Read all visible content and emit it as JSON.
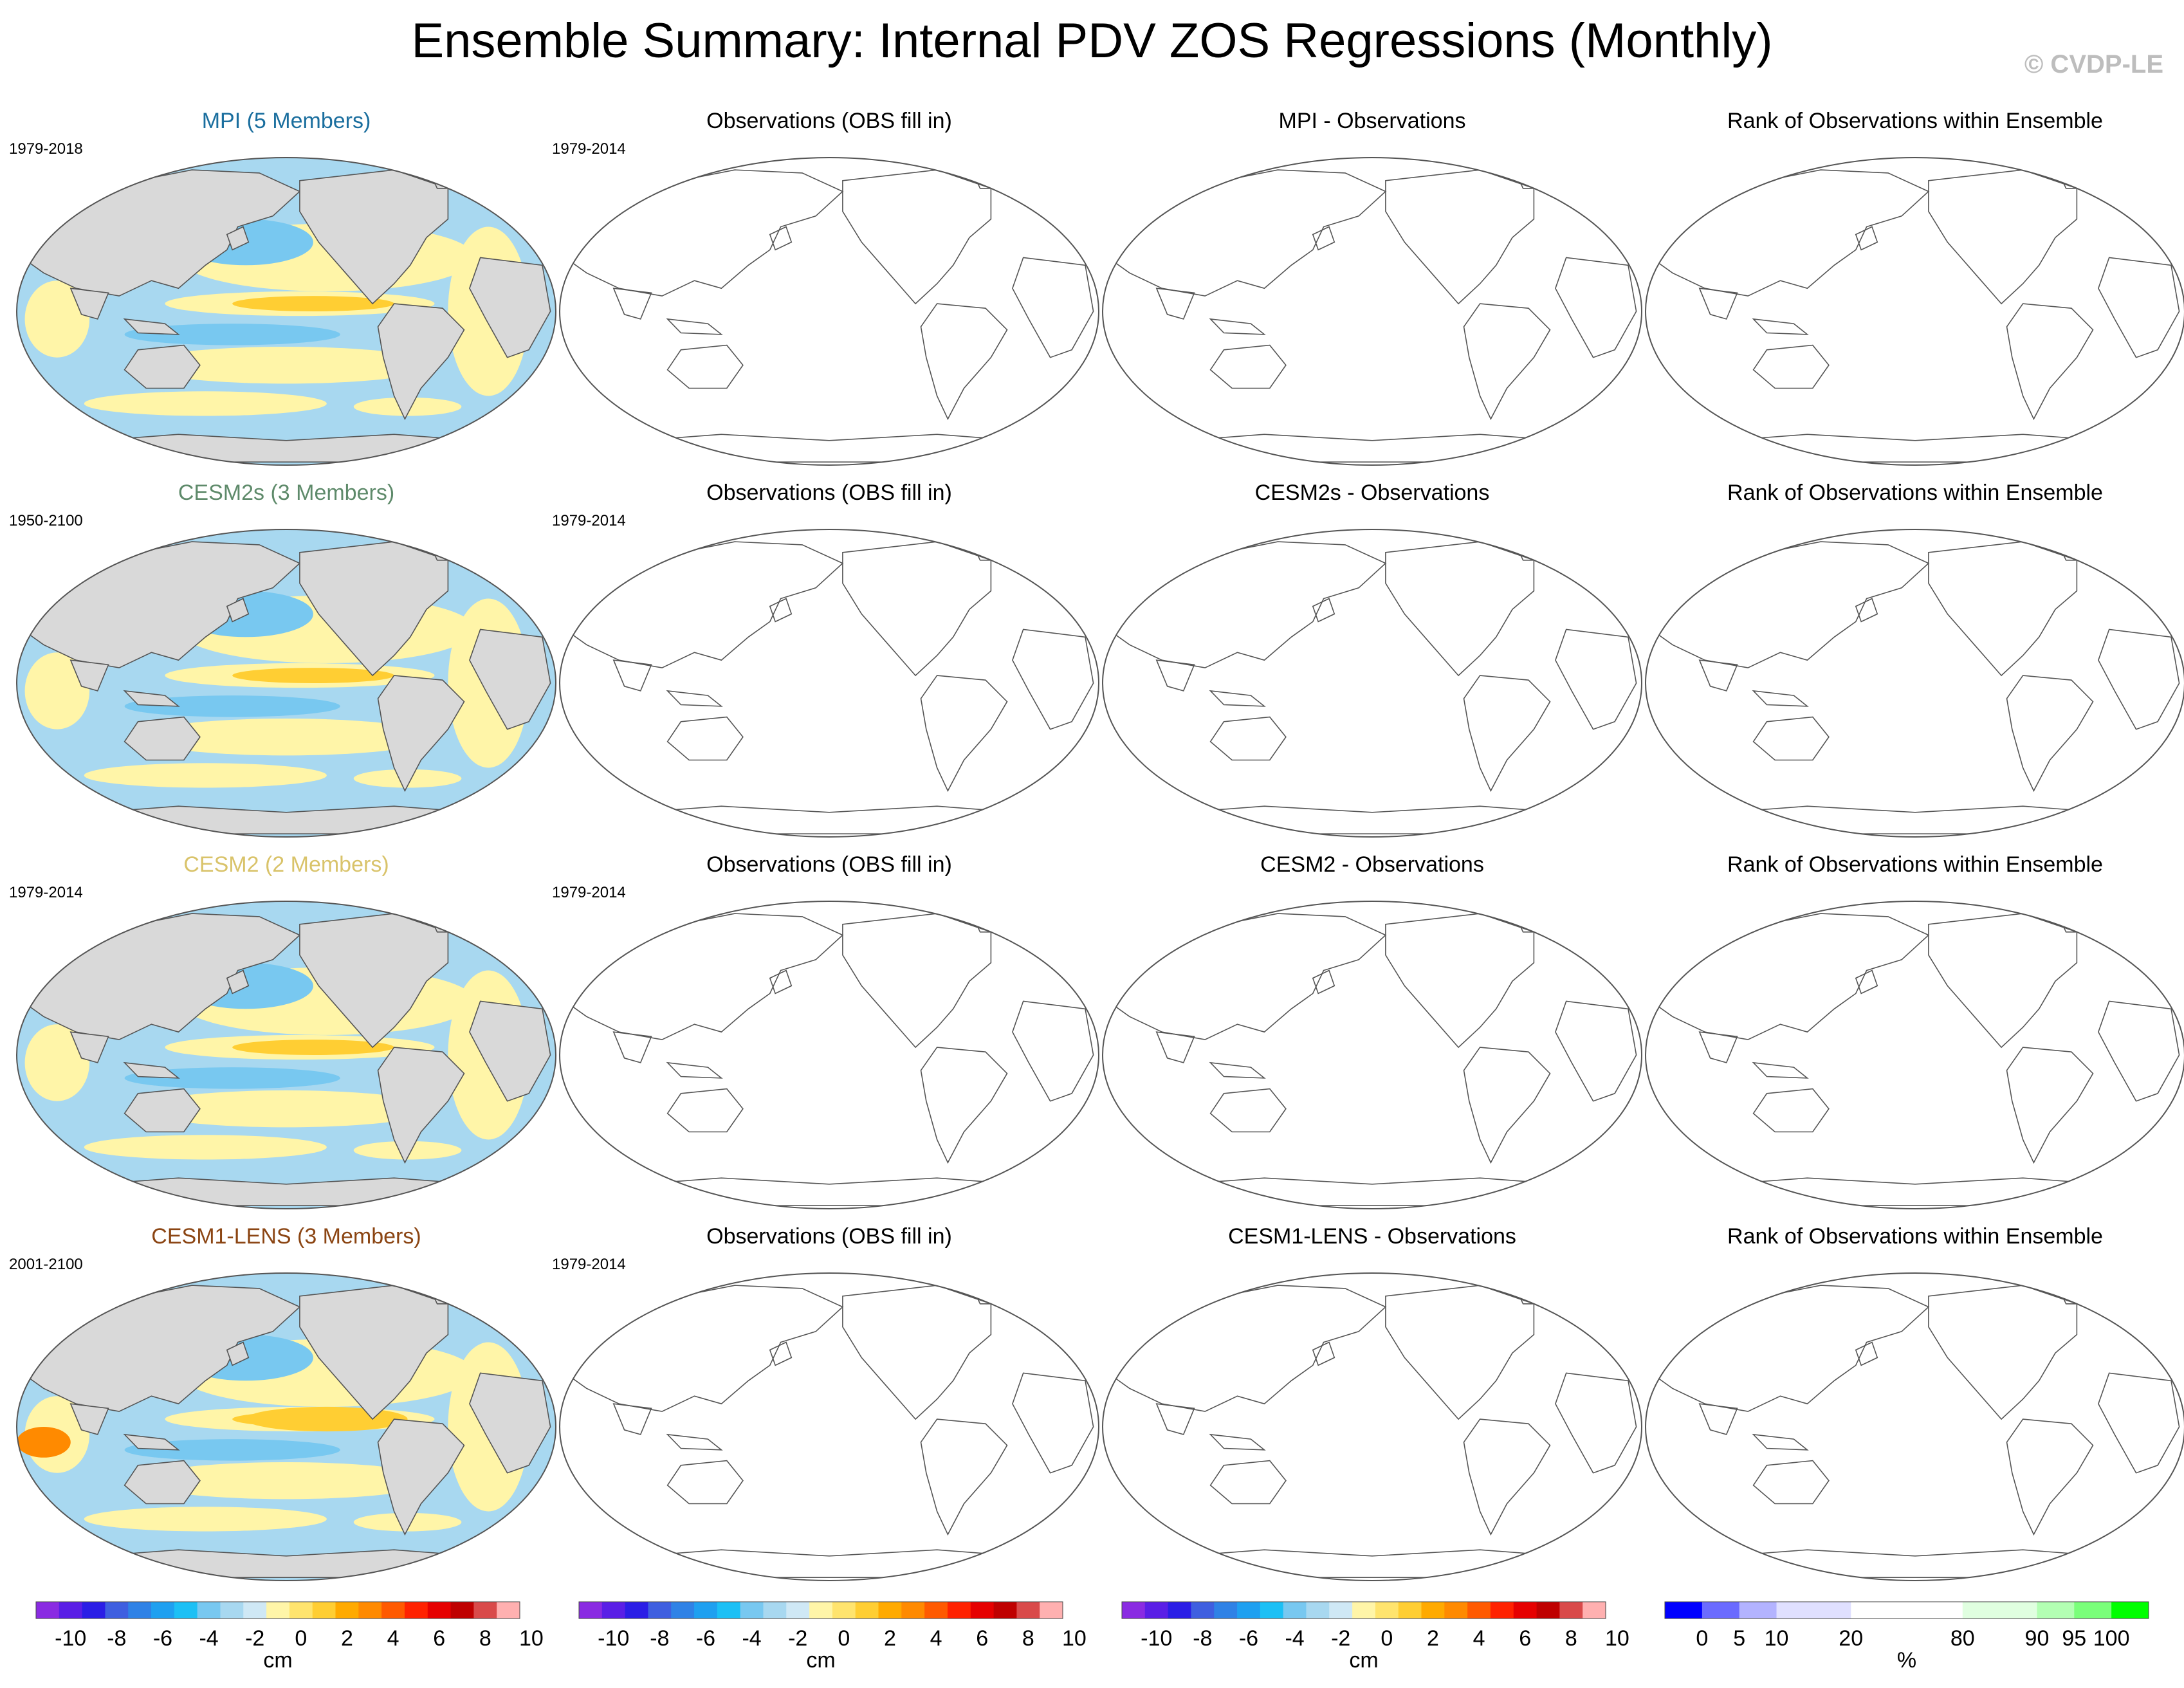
{
  "title": "Ensemble Summary: Internal PDV ZOS Regressions (Monthly)",
  "copyright": "© CVDP-LE",
  "rows": [
    {
      "model_title": "MPI (5 Members)",
      "model_color": "#1a6e9e",
      "model_period": "1979-2018",
      "obs_title": "Observations (OBS fill in)",
      "obs_period": "1979-2014",
      "diff_title": "MPI - Observations",
      "rank_title": "Rank of Observations within Ensemble"
    },
    {
      "model_title": "CESM2s (3 Members)",
      "model_color": "#5e8a6a",
      "model_period": "1950-2100",
      "obs_title": "Observations (OBS fill in)",
      "obs_period": "1979-2014",
      "diff_title": "CESM2s - Observations",
      "rank_title": "Rank of Observations within Ensemble"
    },
    {
      "model_title": "CESM2 (2 Members)",
      "model_color": "#d9c36a",
      "model_period": "1979-2014",
      "obs_title": "Observations (OBS fill in)",
      "obs_period": "1979-2014",
      "diff_title": "CESM2 - Observations",
      "rank_title": "Rank of Observations within Ensemble"
    },
    {
      "model_title": "CESM1-LENS (3 Members)",
      "model_color": "#8b4513",
      "model_period": "2001-2100",
      "obs_title": "Observations (OBS fill in)",
      "obs_period": "1979-2014",
      "diff_title": "CESM1-LENS - Observations",
      "rank_title": "Rank of Observations within Ensemble"
    }
  ],
  "colorbars": [
    {
      "unit": "cm",
      "colors": [
        "#8a2be2",
        "#5a1fe6",
        "#2b1ee6",
        "#3f5fe0",
        "#2f82e6",
        "#1fa0f0",
        "#1cc0f5",
        "#78c8f0",
        "#a8d8f0",
        "#cfe8f5",
        "#fff5a8",
        "#ffe46e",
        "#ffce33",
        "#ffaa00",
        "#ff8a00",
        "#ff5a00",
        "#ff2200",
        "#e60000",
        "#bf0000",
        "#d94a4a",
        "#ffb0b0"
      ],
      "ticks": [
        "-10",
        "-8",
        "-6",
        "-4",
        "-2",
        "0",
        "2",
        "4",
        "6",
        "8",
        "10"
      ]
    },
    {
      "unit": "cm",
      "colors": [
        "#8a2be2",
        "#5a1fe6",
        "#2b1ee6",
        "#3f5fe0",
        "#2f82e6",
        "#1fa0f0",
        "#1cc0f5",
        "#78c8f0",
        "#a8d8f0",
        "#cfe8f5",
        "#fff5a8",
        "#ffe46e",
        "#ffce33",
        "#ffaa00",
        "#ff8a00",
        "#ff5a00",
        "#ff2200",
        "#e60000",
        "#bf0000",
        "#d94a4a",
        "#ffb0b0"
      ],
      "ticks": [
        "-10",
        "-8",
        "-6",
        "-4",
        "-2",
        "0",
        "2",
        "4",
        "6",
        "8",
        "10"
      ]
    },
    {
      "unit": "cm",
      "colors": [
        "#8a2be2",
        "#5a1fe6",
        "#2b1ee6",
        "#3f5fe0",
        "#2f82e6",
        "#1fa0f0",
        "#1cc0f5",
        "#78c8f0",
        "#a8d8f0",
        "#cfe8f5",
        "#fff5a8",
        "#ffe46e",
        "#ffce33",
        "#ffaa00",
        "#ff8a00",
        "#ff5a00",
        "#ff2200",
        "#e60000",
        "#bf0000",
        "#d94a4a",
        "#ffb0b0"
      ],
      "ticks": [
        "-10",
        "-8",
        "-6",
        "-4",
        "-2",
        "0",
        "2",
        "4",
        "6",
        "8",
        "10"
      ]
    },
    {
      "unit": "%",
      "colors": [
        "#0000ff",
        "#6b6bff",
        "#b3b3ff",
        "#e0e0ff",
        "#e0e0ff",
        "#ffffff",
        "#ffffff",
        "#ffffff",
        "#e0ffe0",
        "#e0ffe0",
        "#b3ffb3",
        "#7aff7a",
        "#00ff00"
      ],
      "ticks": [
        "0",
        "5",
        "10",
        "20",
        "80",
        "90",
        "95",
        "100"
      ]
    }
  ]
}
